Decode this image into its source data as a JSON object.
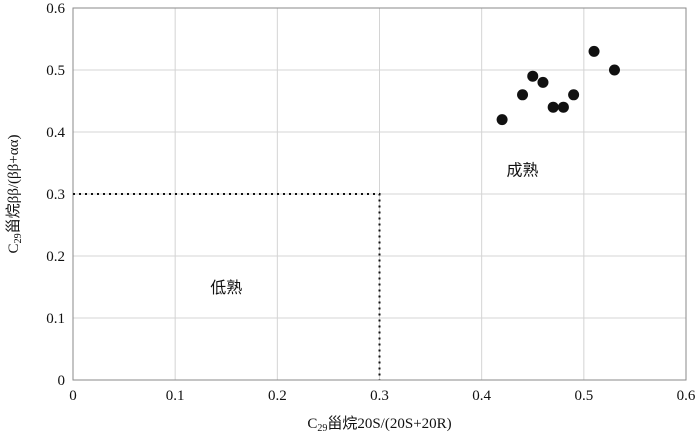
{
  "chart_data": {
    "type": "scatter",
    "title": "",
    "xlabel": {
      "prefix": "C",
      "subscript": "29",
      "text": "甾烷20S/(20S+20R)"
    },
    "ylabel": {
      "prefix": "C",
      "subscript": "29",
      "text": "甾烷ββ/(ββ+αα)"
    },
    "xlim": [
      0,
      0.6
    ],
    "ylim": [
      0,
      0.6
    ],
    "x_ticks": [
      "0",
      "0.1",
      "0.2",
      "0.3",
      "0.4",
      "0.5",
      "0.6"
    ],
    "y_ticks": [
      "0",
      "0.1",
      "0.2",
      "0.3",
      "0.4",
      "0.5",
      "0.6"
    ],
    "grid": true,
    "points": [
      {
        "x": 0.42,
        "y": 0.42
      },
      {
        "x": 0.44,
        "y": 0.46
      },
      {
        "x": 0.45,
        "y": 0.49
      },
      {
        "x": 0.46,
        "y": 0.48
      },
      {
        "x": 0.47,
        "y": 0.44
      },
      {
        "x": 0.48,
        "y": 0.44
      },
      {
        "x": 0.49,
        "y": 0.46
      },
      {
        "x": 0.51,
        "y": 0.53
      },
      {
        "x": 0.53,
        "y": 0.5
      }
    ],
    "threshold": {
      "x": 0.3,
      "y": 0.3
    },
    "annotations": [
      {
        "text": "低熟",
        "x": 0.15,
        "y": 0.14
      },
      {
        "text": "成熟",
        "x": 0.44,
        "y": 0.33
      }
    ]
  }
}
